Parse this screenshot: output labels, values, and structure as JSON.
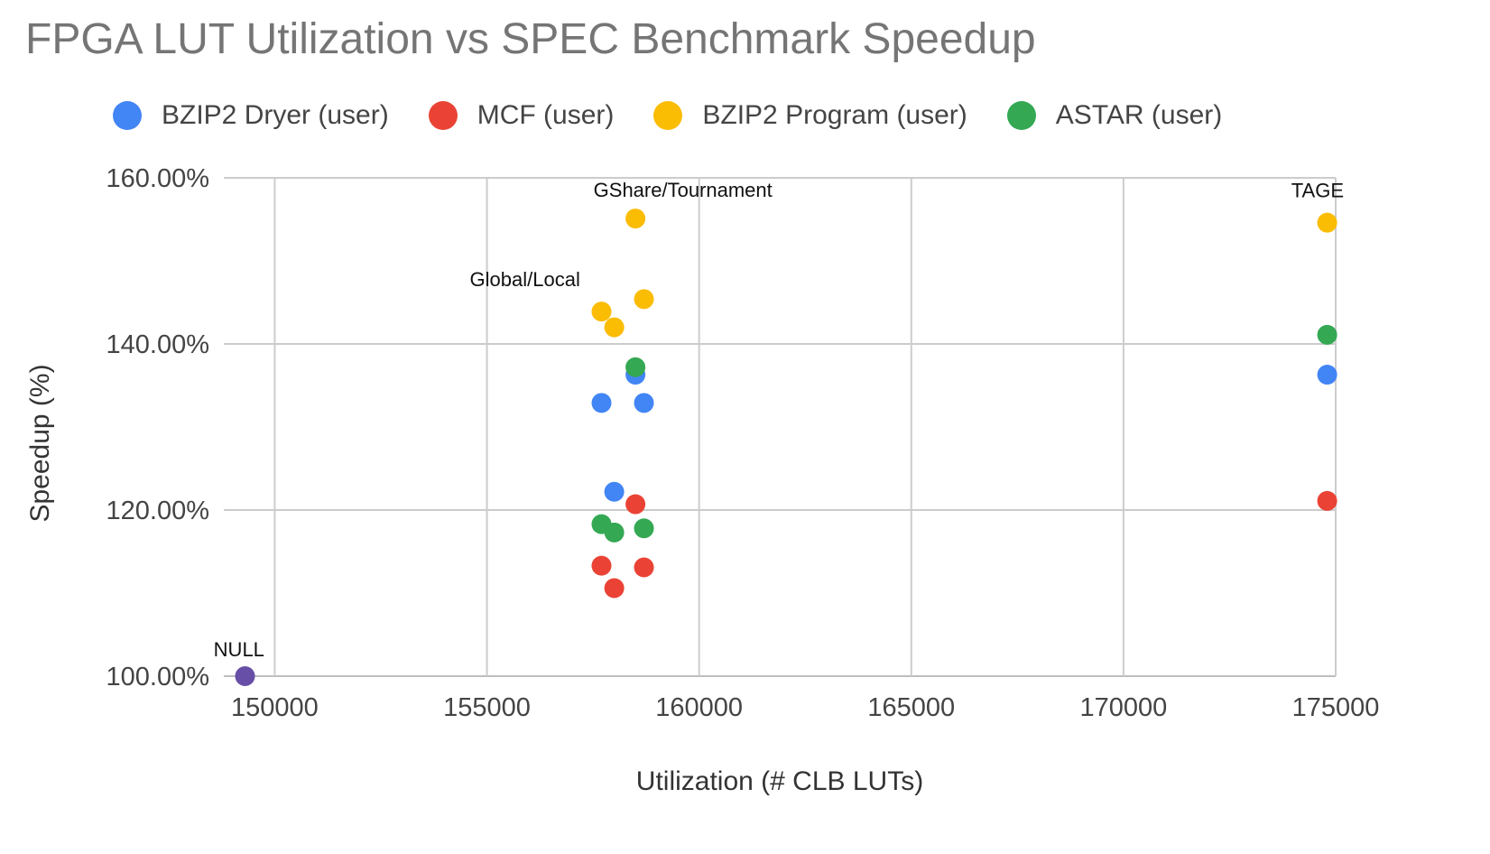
{
  "chart_data": {
    "type": "scatter",
    "title": "FPGA LUT Utilization vs SPEC Benchmark Speedup",
    "xlabel": "Utilization (# CLB LUTs)",
    "ylabel": "Speedup (%)",
    "xlim": [
      148800,
      175000
    ],
    "ylim": [
      100,
      160
    ],
    "x_ticks": [
      150000,
      155000,
      160000,
      165000,
      170000,
      175000
    ],
    "y_ticks": [
      100,
      120,
      140,
      160
    ],
    "y_tick_labels": [
      "100.00%",
      "120.00%",
      "140.00%",
      "160.00%"
    ],
    "grid": true,
    "legend_position": "top",
    "series": [
      {
        "name": "BZIP2 Dryer (user)",
        "color": "#4285F4",
        "points": [
          {
            "x": 157700,
            "y": 132.9
          },
          {
            "x": 158000,
            "y": 122.2
          },
          {
            "x": 158500,
            "y": 136.3
          },
          {
            "x": 158700,
            "y": 132.9
          },
          {
            "x": 174800,
            "y": 136.3
          }
        ]
      },
      {
        "name": "MCF (user)",
        "color": "#EA4335",
        "points": [
          {
            "x": 157700,
            "y": 113.3
          },
          {
            "x": 158000,
            "y": 110.6
          },
          {
            "x": 158500,
            "y": 120.7
          },
          {
            "x": 158700,
            "y": 113.1
          },
          {
            "x": 174800,
            "y": 121.1
          }
        ]
      },
      {
        "name": "BZIP2 Program (user)",
        "color": "#FBBC04",
        "points": [
          {
            "x": 157700,
            "y": 143.9
          },
          {
            "x": 158000,
            "y": 142.0
          },
          {
            "x": 158500,
            "y": 155.1
          },
          {
            "x": 158700,
            "y": 145.4
          },
          {
            "x": 174800,
            "y": 154.6
          }
        ]
      },
      {
        "name": "ASTAR (user)",
        "color": "#34A853",
        "points": [
          {
            "x": 157700,
            "y": 118.3
          },
          {
            "x": 158000,
            "y": 117.3
          },
          {
            "x": 158500,
            "y": 137.2
          },
          {
            "x": 158700,
            "y": 117.8
          },
          {
            "x": 174800,
            "y": 141.1
          }
        ]
      }
    ],
    "extra_points": [
      {
        "x": 149300,
        "y": 100.0,
        "color": "#674EA7"
      }
    ],
    "annotations": [
      {
        "text": "GShare/Tournament",
        "x": 158300,
        "y": 155.1
      },
      {
        "text": "Global/Local",
        "x": 157300,
        "y": 143.9
      },
      {
        "text": "TAGE",
        "x": 174700,
        "y": 154.6
      },
      {
        "text": "NULL",
        "x": 149200,
        "y": 100.0
      }
    ]
  }
}
